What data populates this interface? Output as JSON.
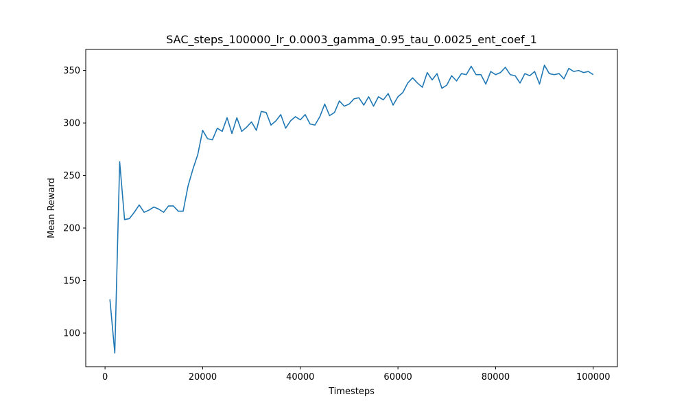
{
  "chart_data": {
    "type": "line",
    "title": "SAC_steps_100000_lr_0.0003_gamma_0.95_tau_0.0025_ent_coef_1",
    "xlabel": "Timesteps",
    "ylabel": "Mean Reward",
    "xlim": [
      -3950,
      104950
    ],
    "ylim": [
      68,
      370
    ],
    "x_ticks": [
      0,
      20000,
      40000,
      60000,
      80000,
      100000
    ],
    "y_ticks": [
      100,
      150,
      200,
      250,
      300,
      350
    ],
    "grid": false,
    "line_color": "#1f77b4",
    "series": [
      {
        "x": [
          1000,
          2000,
          3000,
          4000,
          5000,
          6000,
          7000,
          8000,
          9000,
          10000,
          11000,
          12000,
          13000,
          14000,
          15000,
          16000,
          17000,
          18000,
          19000,
          20000,
          21000,
          22000,
          23000,
          24000,
          25000,
          26000,
          27000,
          28000,
          29000,
          30000,
          31000,
          32000,
          33000,
          34000,
          35000,
          36000,
          37000,
          38000,
          39000,
          40000,
          41000,
          42000,
          43000,
          44000,
          45000,
          46000,
          47000,
          48000,
          49000,
          50000,
          51000,
          52000,
          53000,
          54000,
          55000,
          56000,
          57000,
          58000,
          59000,
          60000,
          61000,
          62000,
          63000,
          64000,
          65000,
          66000,
          67000,
          68000,
          69000,
          70000,
          71000,
          72000,
          73000,
          74000,
          75000,
          76000,
          77000,
          78000,
          79000,
          80000,
          81000,
          82000,
          83000,
          84000,
          85000,
          86000,
          87000,
          88000,
          89000,
          90000,
          91000,
          92000,
          93000,
          94000,
          95000,
          96000,
          97000,
          98000,
          99000,
          100000
        ],
        "values": [
          132,
          81,
          263,
          208,
          209,
          215,
          222,
          215,
          217,
          220,
          218,
          215,
          221,
          221,
          216,
          216,
          240,
          256,
          270,
          293,
          285,
          284,
          295,
          292,
          305,
          290,
          305,
          292,
          296,
          301,
          293,
          311,
          310,
          298,
          302,
          308,
          295,
          302,
          306,
          303,
          308,
          299,
          298,
          306,
          318,
          307,
          310,
          321,
          316,
          318,
          323,
          324,
          317,
          325,
          316,
          325,
          322,
          328,
          317,
          325,
          329,
          338,
          343,
          338,
          334,
          348,
          341,
          347,
          333,
          336,
          345,
          340,
          347,
          346,
          354,
          346,
          346,
          337,
          349,
          346,
          348,
          353,
          346,
          345,
          338,
          347,
          345,
          349,
          337,
          355,
          347,
          346,
          347,
          342,
          352,
          349,
          350,
          348,
          349,
          346
        ]
      }
    ]
  }
}
